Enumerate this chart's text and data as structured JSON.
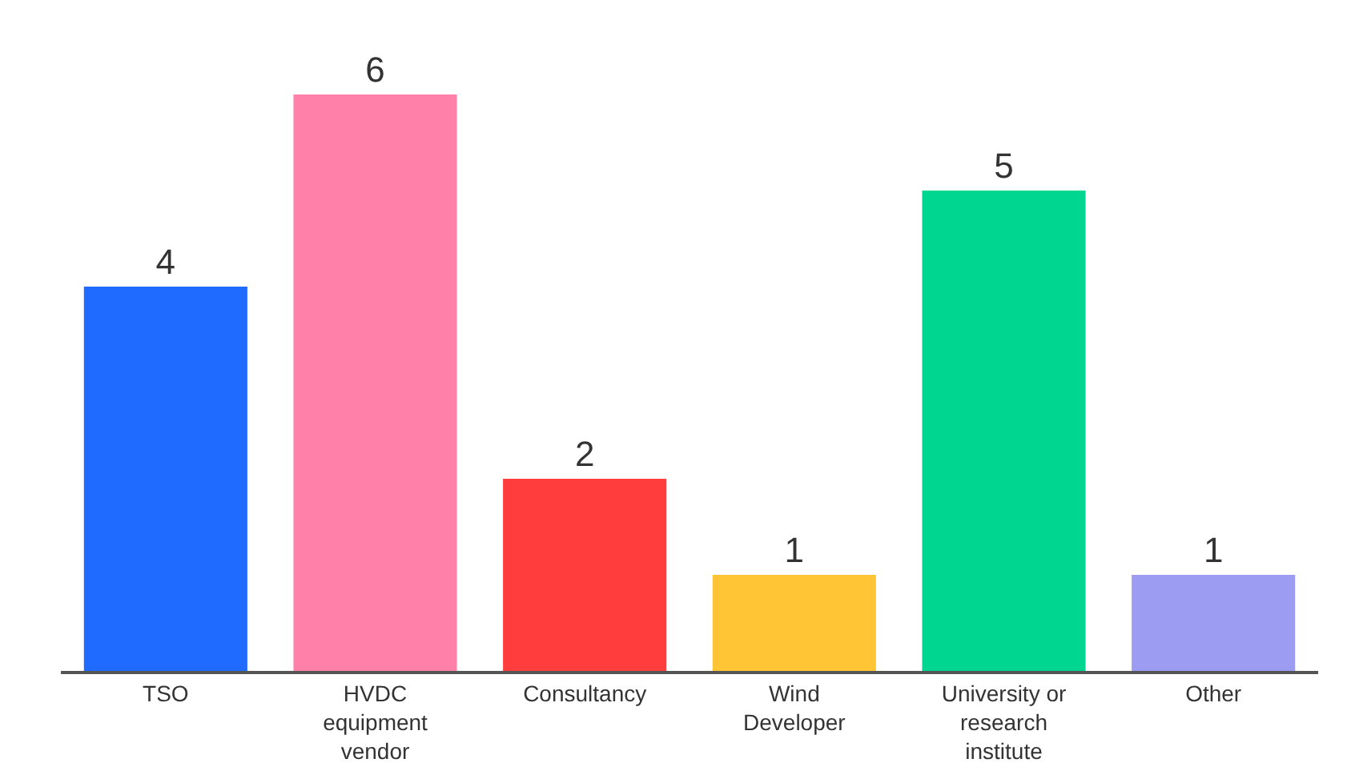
{
  "chart_data": {
    "type": "bar",
    "categories": [
      "TSO",
      "HVDC equipment vendor",
      "Consultancy",
      "Wind Developer",
      "University or research institute",
      "Other"
    ],
    "values": [
      4,
      6,
      2,
      1,
      5,
      1
    ],
    "colors": [
      "#1f6bff",
      "#ff80a8",
      "#ff3d3d",
      "#ffc534",
      "#00d68f",
      "#9b9cf2"
    ],
    "data_labels": true,
    "tick_labels": "x"
  }
}
